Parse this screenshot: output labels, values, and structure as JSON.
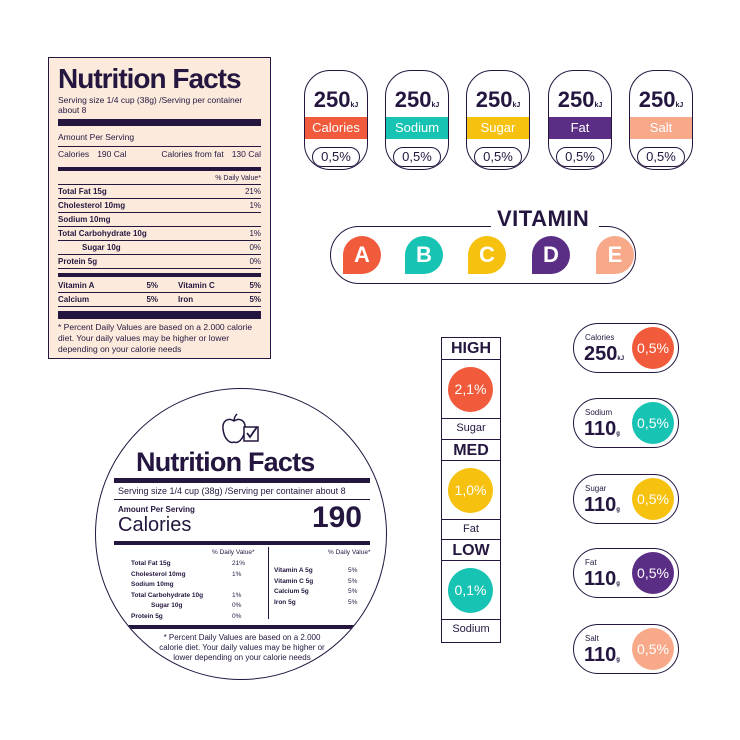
{
  "label": {
    "title": "Nutrition Facts",
    "serving": "Serving size 1/4 cup (38g) /Serving per container about 8",
    "amount_per_serving": "Amount Per Serving",
    "calories_label": "Calories",
    "calories_value": "190 Cal",
    "calories_fat_label": "Calories from fat",
    "calories_fat_value": "130 Cal",
    "daily_value_header": "% Daily Value*",
    "nutrients": [
      {
        "name": "Total Fat 15g",
        "dv": "21%"
      },
      {
        "name": "Cholesterol 10mg",
        "dv": "1%"
      },
      {
        "name": "Sodium 10mg",
        "dv": ""
      },
      {
        "name": "Total Carbohydrate 10g",
        "dv": "1%"
      },
      {
        "name": "Sugar 10g",
        "dv": "0%"
      },
      {
        "name": "Protein 5g",
        "dv": "0%"
      }
    ],
    "vitamins": [
      {
        "a": "Vitamin   A",
        "av": "5%",
        "b": "Vitamin   C",
        "bv": "5%"
      },
      {
        "a": "Calcium",
        "av": "5%",
        "b": "Iron",
        "bv": "5%"
      }
    ],
    "footnote": "* Percent Daily Values are based on a 2.000 calorie diet. Your daily values may be higher or lower depending on your calorie needs"
  },
  "badges": [
    {
      "value": "250",
      "unit": "kJ",
      "name": "Calories",
      "pct": "0,5%",
      "color": "#f15a3a"
    },
    {
      "value": "250",
      "unit": "kJ",
      "name": "Sodium",
      "pct": "0,5%",
      "color": "#17c3b2"
    },
    {
      "value": "250",
      "unit": "kJ",
      "name": "Sugar",
      "pct": "0,5%",
      "color": "#f7c10f"
    },
    {
      "value": "250",
      "unit": "kJ",
      "name": "Fat",
      "pct": "0,5%",
      "color": "#5b2e86"
    },
    {
      "value": "250",
      "unit": "kJ",
      "name": "Salt",
      "pct": "0,5%",
      "color": "#f7a98a"
    }
  ],
  "vitamin": {
    "title": "VITAMIN",
    "letters": [
      {
        "letter": "A",
        "color": "#f15a3a"
      },
      {
        "letter": "B",
        "color": "#17c3b2"
      },
      {
        "letter": "C",
        "color": "#f7c10f"
      },
      {
        "letter": "D",
        "color": "#5b2e86"
      },
      {
        "letter": "E",
        "color": "#f7a98a"
      }
    ]
  },
  "levels": [
    {
      "head": "HIGH",
      "pct": "2,1%",
      "name": "Sugar",
      "color": "#f15a3a"
    },
    {
      "head": "MED",
      "pct": "1,0%",
      "name": "Fat",
      "color": "#f7c10f"
    },
    {
      "head": "LOW",
      "pct": "0,1%",
      "name": "Sodium",
      "color": "#17c3b2"
    }
  ],
  "pills": [
    {
      "name": "Calories",
      "value": "250",
      "unit": "kJ",
      "pct": "0,5%",
      "color": "#f15a3a"
    },
    {
      "name": "Sodium",
      "value": "110",
      "unit": "g",
      "pct": "0,5%",
      "color": "#17c3b2"
    },
    {
      "name": "Sugar",
      "value": "110",
      "unit": "g",
      "pct": "0,5%",
      "color": "#f7c10f"
    },
    {
      "name": "Fat",
      "value": "110",
      "unit": "g",
      "pct": "0,5%",
      "color": "#5b2e86"
    },
    {
      "name": "Salt",
      "value": "110",
      "unit": "g",
      "pct": "0,5%",
      "color": "#f7a98a"
    }
  ],
  "circle": {
    "title": "Nutrition Facts",
    "serving": "Serving size 1/4 cup (38g) /Serving per container about 8",
    "amount_per_serving": "Amount Per Serving",
    "calories_label": "Calories",
    "calories_value": "190",
    "dv_header": "% Daily Value*",
    "left": [
      {
        "name": "Total Fat 15g",
        "dv": "21%"
      },
      {
        "name": "Cholesterol 10mg",
        "dv": "1%"
      },
      {
        "name": "Sodium 10mg",
        "dv": ""
      },
      {
        "name": "Total Carbohydrate 10g",
        "dv": "1%"
      },
      {
        "name": "Sugar 10g",
        "dv": "0%"
      },
      {
        "name": "Protein 5g",
        "dv": "0%"
      }
    ],
    "right": [
      {
        "name": "Vitamin   A 5g",
        "dv": "5%"
      },
      {
        "name": "Vitamin C 5g",
        "dv": "5%"
      },
      {
        "name": "Calcium 5g",
        "dv": "5%"
      },
      {
        "name": "Iron 5g",
        "dv": "5%"
      }
    ],
    "footnote": "* Percent Daily Values are based on a 2.000 calorie diet. Your daily values may be higher or lower depending on your calorie needs"
  }
}
